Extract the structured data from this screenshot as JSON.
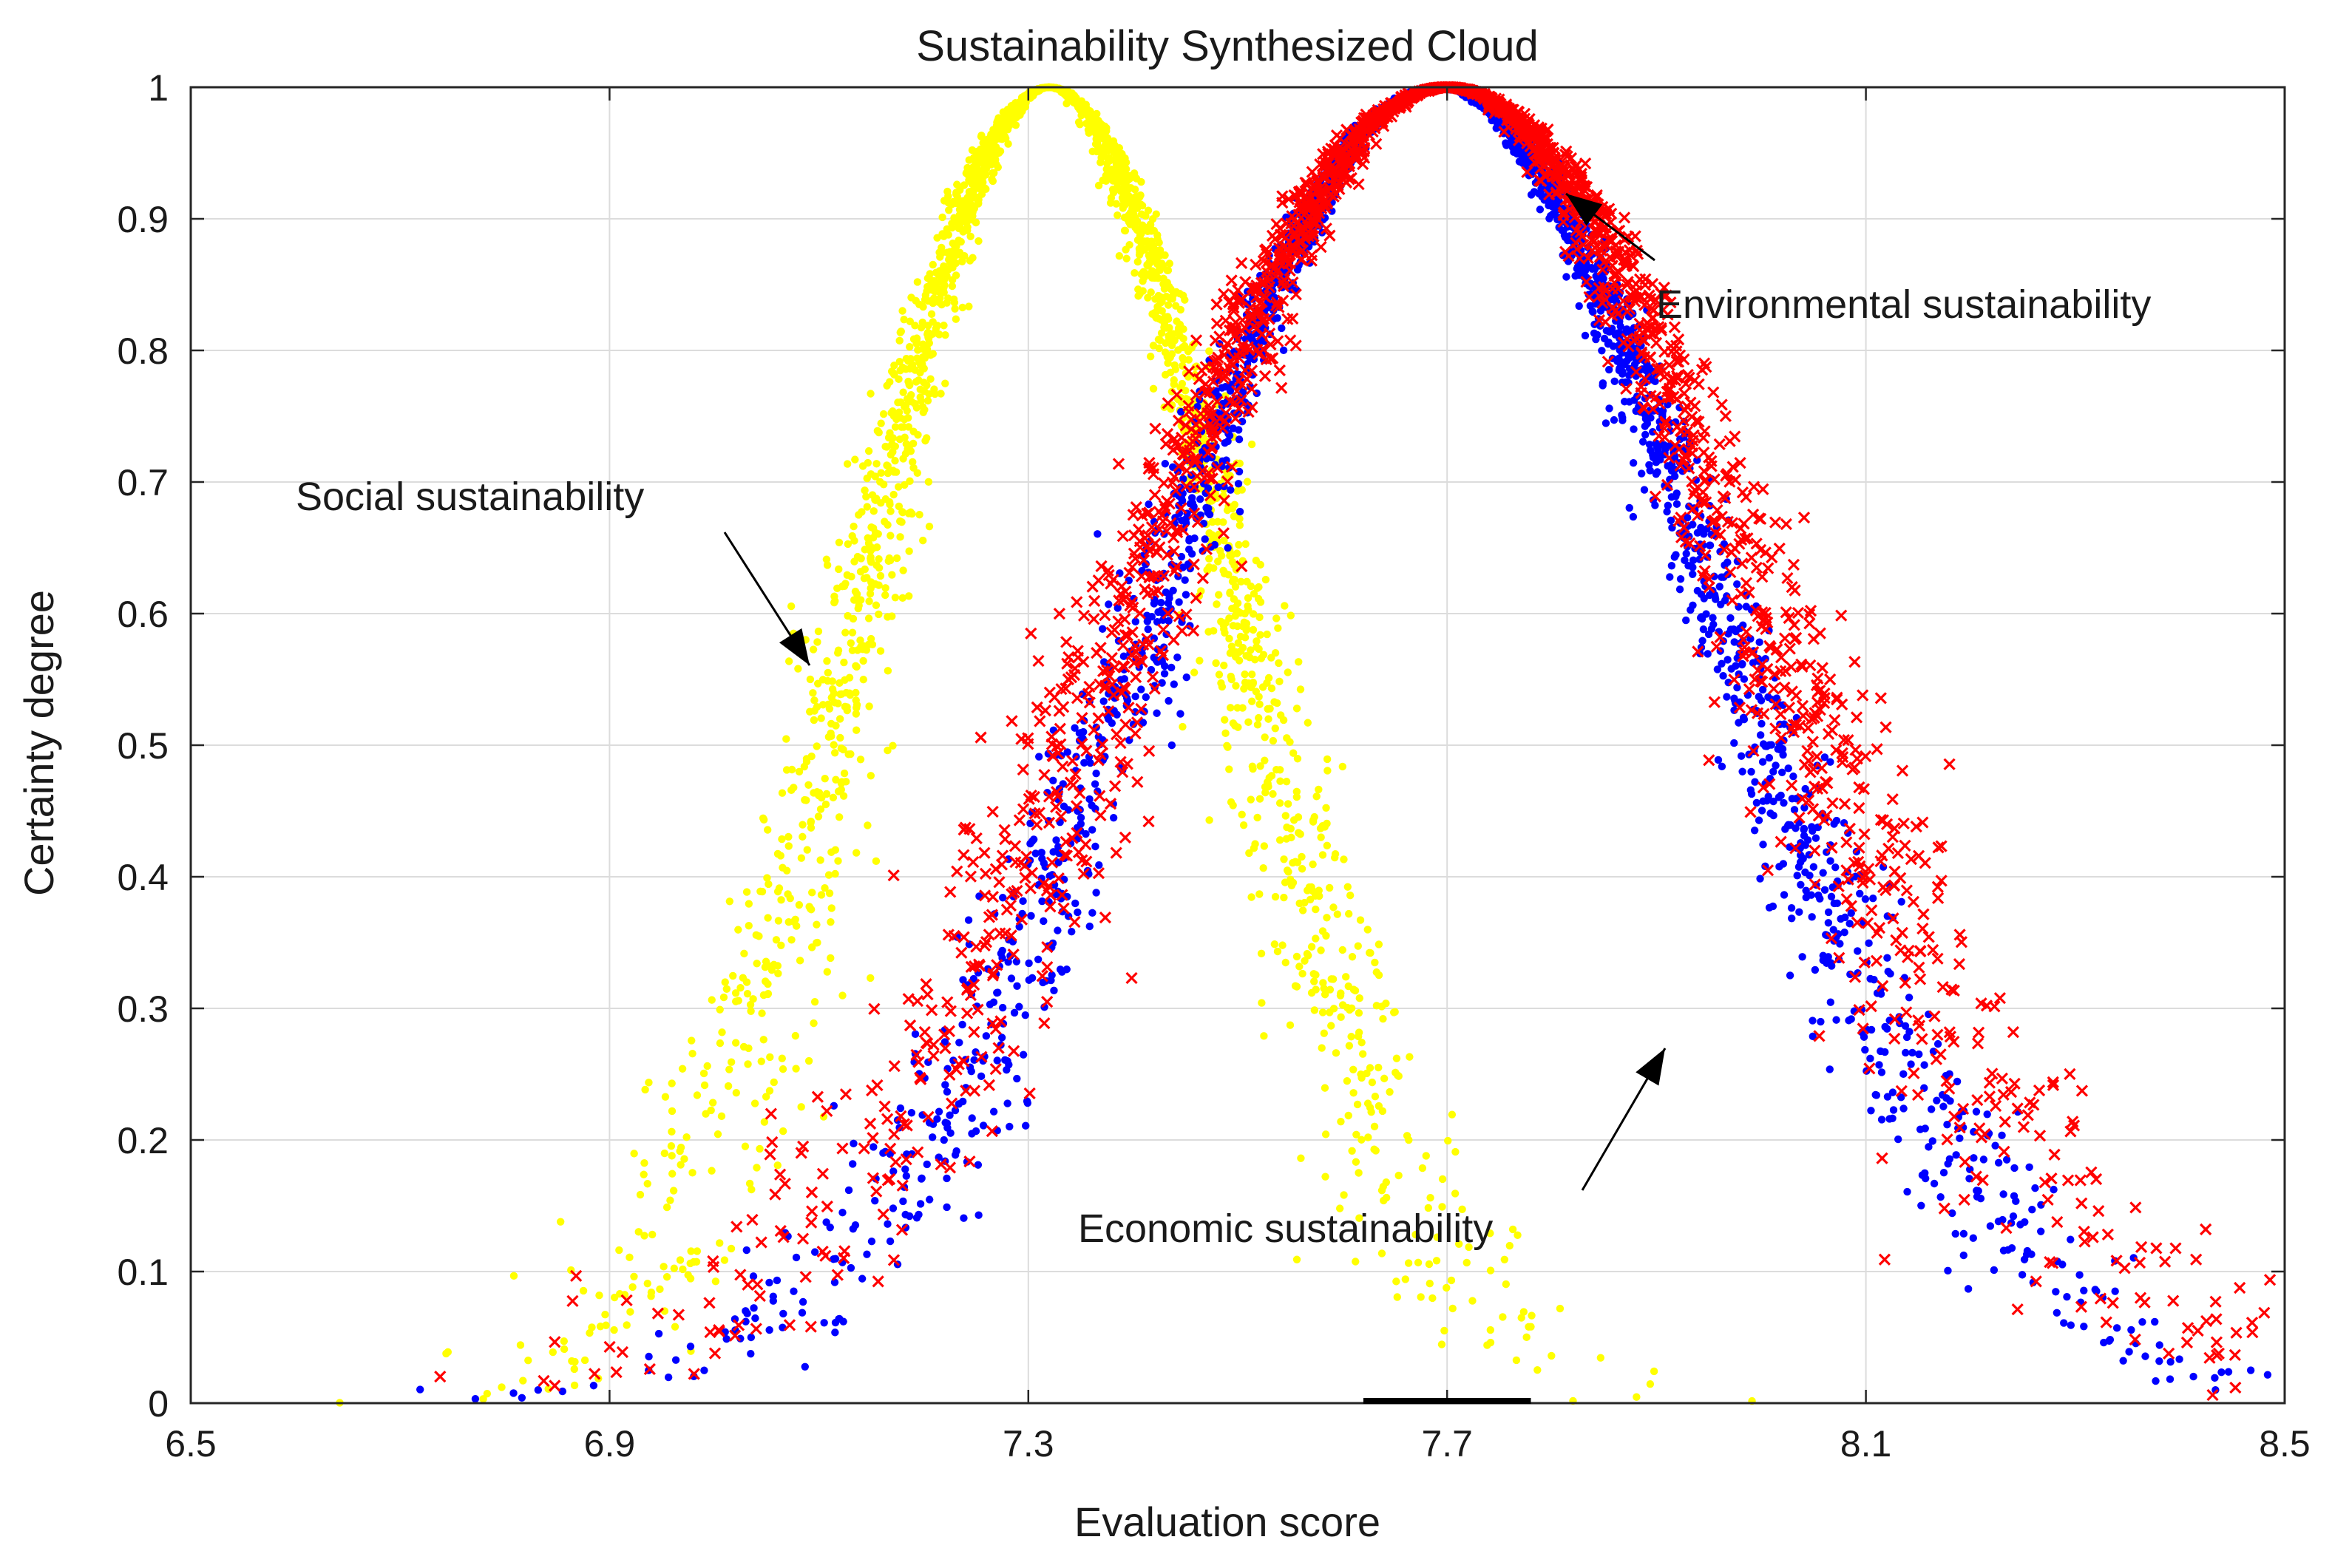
{
  "chart_data": {
    "type": "scatter",
    "title": "Sustainability Synthesized Cloud",
    "xlabel": "Evaluation score",
    "ylabel": "Certainty degree",
    "xlim": [
      6.5,
      8.5
    ],
    "ylim": [
      0,
      1
    ],
    "grid": true,
    "x_ticks": [
      "6.5",
      "6.9",
      "7.3",
      "7.7",
      "8.1",
      "8.5"
    ],
    "y_ticks": [
      "0",
      "0.1",
      "0.2",
      "0.3",
      "0.4",
      "0.5",
      "0.6",
      "0.7",
      "0.8",
      "0.9",
      "1"
    ],
    "series": [
      {
        "name": "Social sustainability",
        "color": "#ffff00",
        "marker": "dot",
        "model": "normal cloud",
        "Ex": 7.32,
        "En": 0.18,
        "He": 0.02,
        "samples": [
          [
            6.73,
            0.01
          ],
          [
            6.86,
            0.06
          ],
          [
            6.93,
            0.09
          ],
          [
            6.98,
            0.14
          ],
          [
            7.02,
            0.2
          ],
          [
            7.05,
            0.27
          ],
          [
            7.08,
            0.33
          ],
          [
            7.11,
            0.42
          ],
          [
            7.13,
            0.48
          ],
          [
            7.16,
            0.54
          ],
          [
            7.19,
            0.62
          ],
          [
            7.21,
            0.68
          ],
          [
            7.24,
            0.76
          ],
          [
            7.26,
            0.84
          ],
          [
            7.28,
            0.91
          ],
          [
            7.3,
            0.97
          ],
          [
            7.32,
            1.0
          ],
          [
            7.34,
            0.98
          ],
          [
            7.36,
            0.94
          ],
          [
            7.39,
            0.87
          ],
          [
            7.42,
            0.8
          ],
          [
            7.44,
            0.72
          ],
          [
            7.47,
            0.63
          ],
          [
            7.5,
            0.55
          ],
          [
            7.53,
            0.46
          ],
          [
            7.56,
            0.38
          ],
          [
            7.6,
            0.3
          ],
          [
            7.63,
            0.22
          ],
          [
            7.67,
            0.14
          ],
          [
            7.72,
            0.09
          ],
          [
            7.78,
            0.04
          ],
          [
            7.83,
            0.02
          ],
          [
            7.9,
            0.0
          ]
        ]
      },
      {
        "name": "Economic sustainability",
        "color": "#0000ff",
        "marker": "dot",
        "model": "normal cloud",
        "Ex": 7.69,
        "En": 0.27,
        "He": 0.02,
        "samples": [
          [
            6.97,
            0.0
          ],
          [
            7.05,
            0.02
          ],
          [
            7.12,
            0.06
          ],
          [
            7.18,
            0.11
          ],
          [
            7.24,
            0.18
          ],
          [
            7.3,
            0.26
          ],
          [
            7.36,
            0.35
          ],
          [
            7.41,
            0.45
          ],
          [
            7.46,
            0.56
          ],
          [
            7.51,
            0.66
          ],
          [
            7.55,
            0.76
          ],
          [
            7.6,
            0.86
          ],
          [
            7.64,
            0.94
          ],
          [
            7.69,
            1.0
          ],
          [
            7.74,
            0.97
          ],
          [
            7.78,
            0.9
          ],
          [
            7.83,
            0.81
          ],
          [
            7.87,
            0.71
          ],
          [
            7.91,
            0.6
          ],
          [
            7.95,
            0.49
          ],
          [
            7.99,
            0.39
          ],
          [
            8.03,
            0.3
          ],
          [
            8.08,
            0.21
          ],
          [
            8.13,
            0.13
          ],
          [
            8.19,
            0.07
          ],
          [
            8.26,
            0.03
          ],
          [
            8.34,
            0.0
          ]
        ]
      },
      {
        "name": "Environmental sustainability",
        "color": "#ff0000",
        "marker": "x",
        "model": "normal cloud",
        "Ex": 7.7,
        "En": 0.3,
        "He": 0.03,
        "samples": [
          [
            6.99,
            0.0
          ],
          [
            7.07,
            0.03
          ],
          [
            7.14,
            0.08
          ],
          [
            7.21,
            0.15
          ],
          [
            7.27,
            0.23
          ],
          [
            7.33,
            0.32
          ],
          [
            7.39,
            0.43
          ],
          [
            7.44,
            0.54
          ],
          [
            7.5,
            0.66
          ],
          [
            7.55,
            0.77
          ],
          [
            7.6,
            0.87
          ],
          [
            7.65,
            0.95
          ],
          [
            7.7,
            1.0
          ],
          [
            7.76,
            0.96
          ],
          [
            7.81,
            0.89
          ],
          [
            7.86,
            0.79
          ],
          [
            7.91,
            0.68
          ],
          [
            7.96,
            0.57
          ],
          [
            8.01,
            0.46
          ],
          [
            8.06,
            0.36
          ],
          [
            8.11,
            0.27
          ],
          [
            8.17,
            0.18
          ],
          [
            8.24,
            0.1
          ],
          [
            8.32,
            0.05
          ],
          [
            8.4,
            0.02
          ],
          [
            8.46,
            0.0
          ]
        ]
      }
    ],
    "annotations": [
      {
        "text": "Social sustainability",
        "points_to": "Social sustainability"
      },
      {
        "text": "Environmental sustainability",
        "points_to": "Environmental sustainability"
      },
      {
        "text": "Economic sustainability",
        "points_to": "Economic sustainability"
      }
    ]
  }
}
